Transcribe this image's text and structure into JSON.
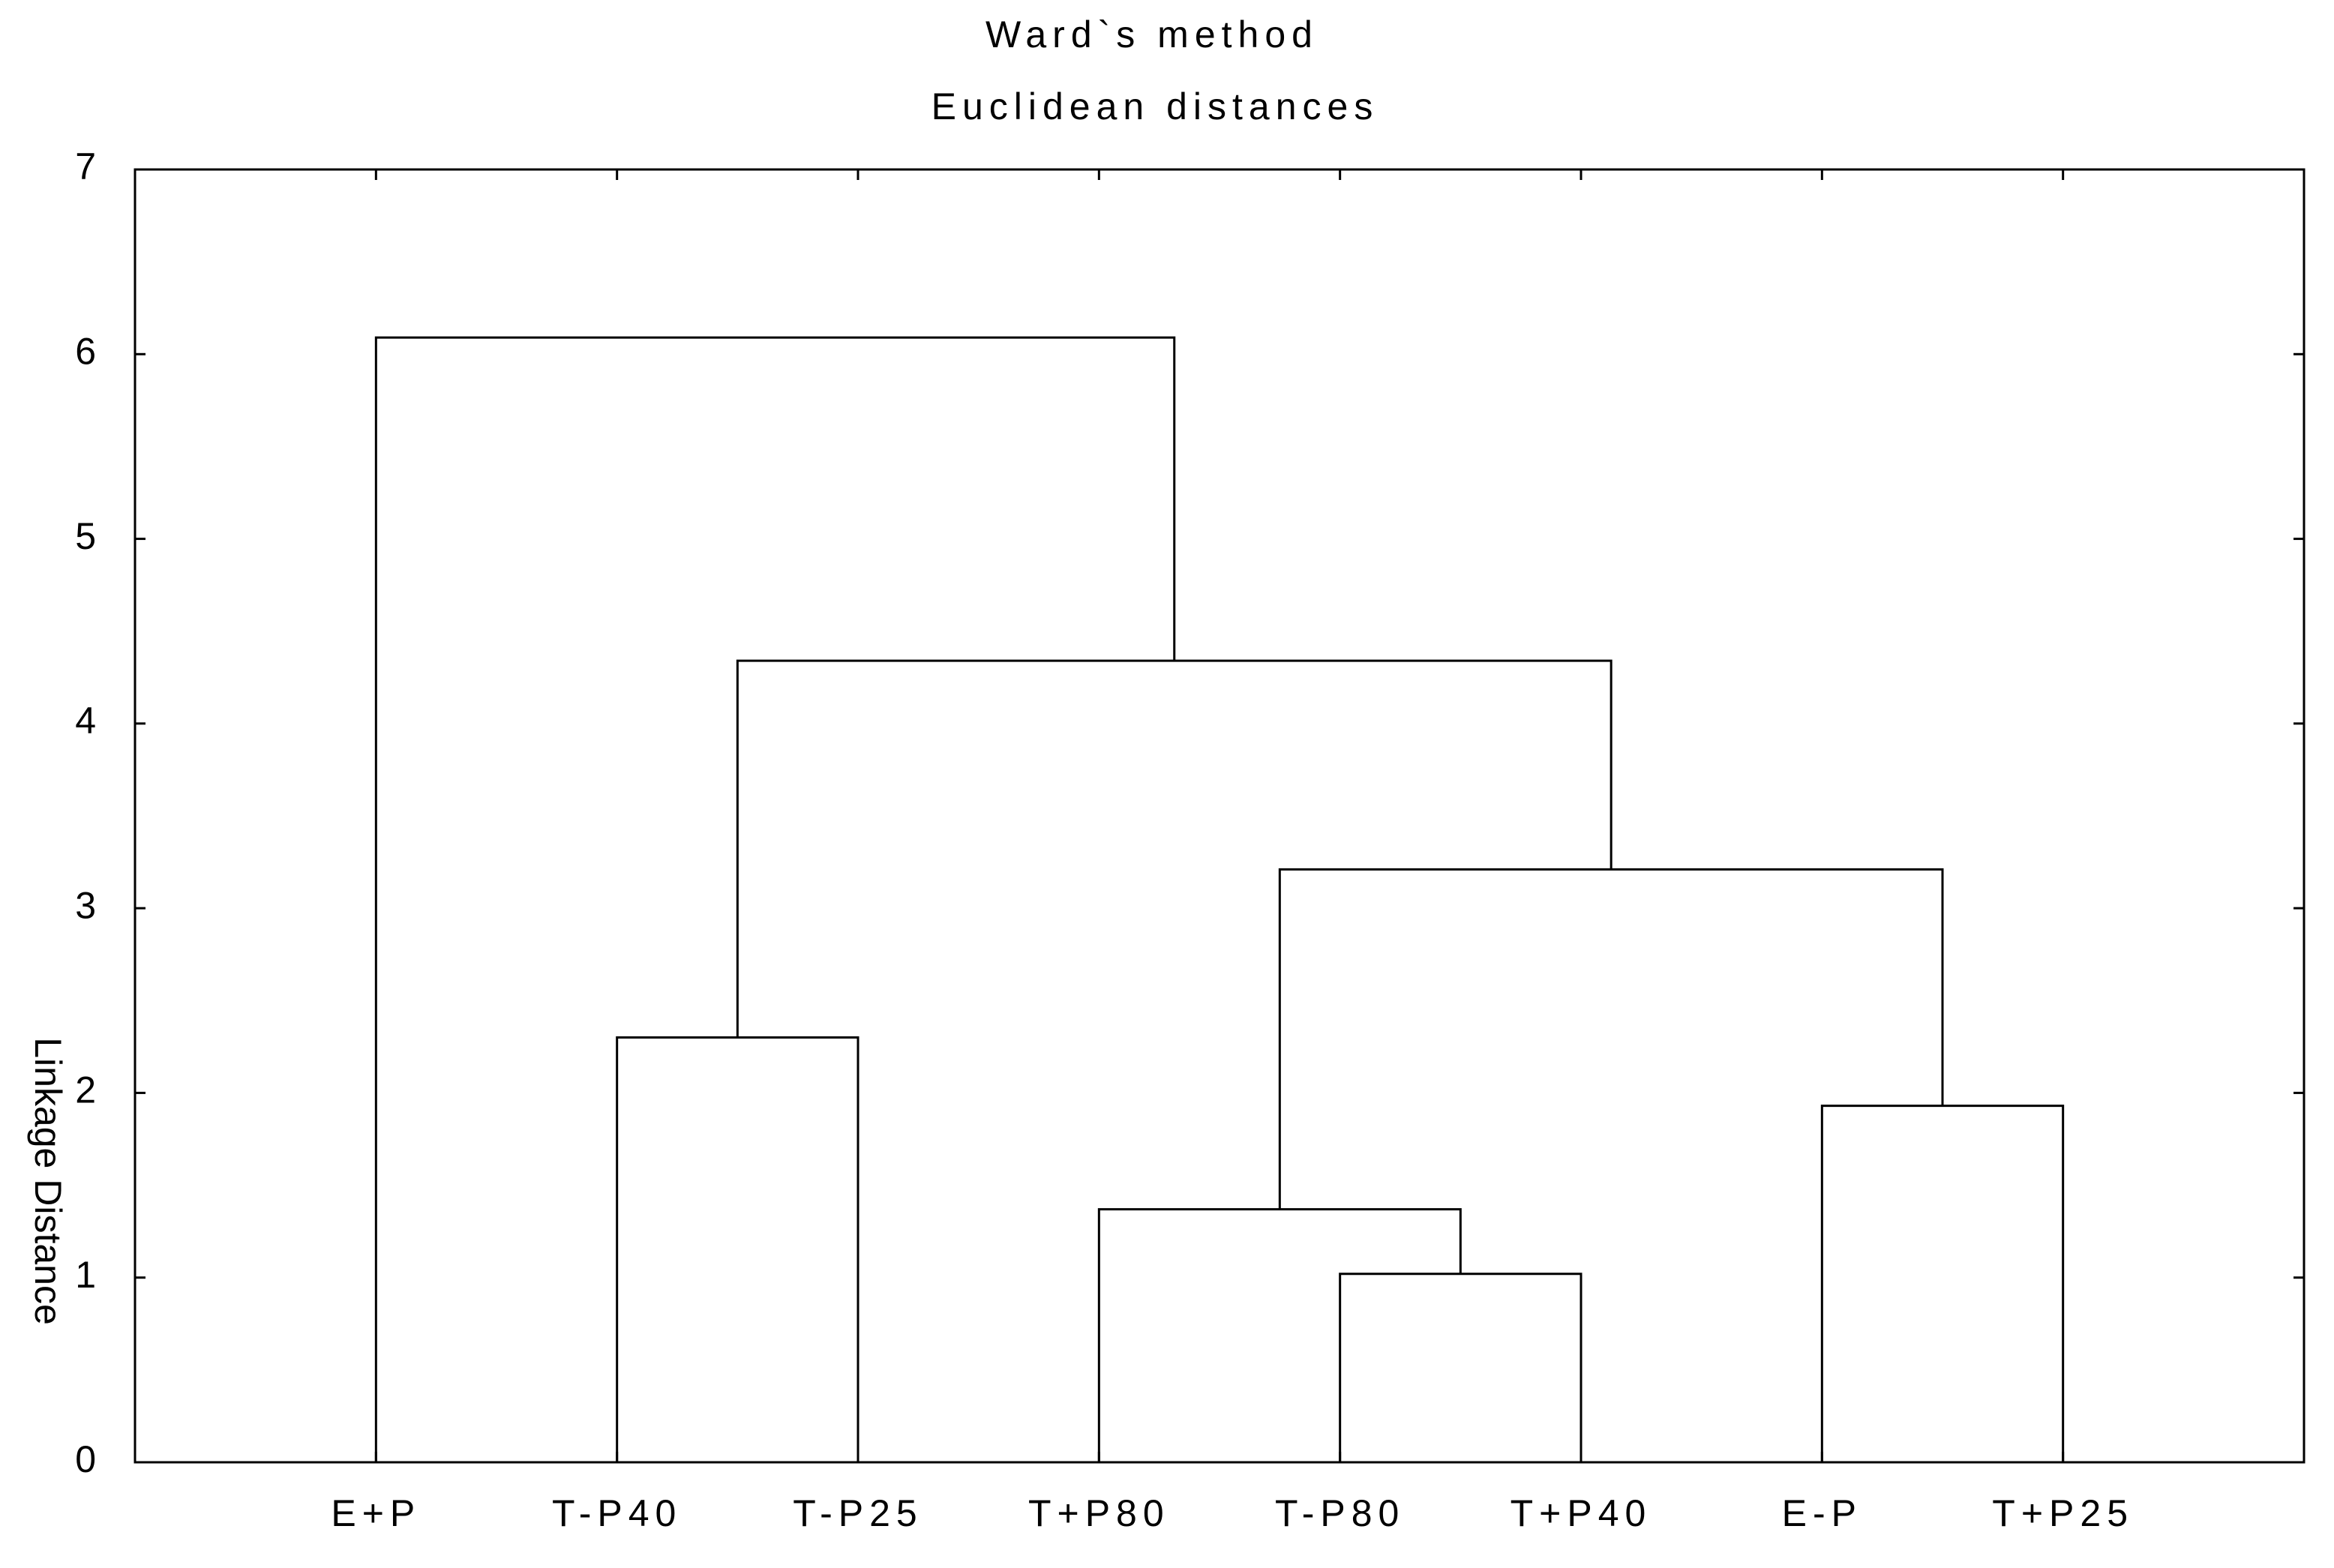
{
  "chart_data": {
    "type": "dendrogram",
    "title": "Ward`s method",
    "subtitle": "Euclidean distances",
    "y_label": "Linkage Distance",
    "leaves": [
      "E+P",
      "T-P40",
      "T-P25",
      "T+P80",
      "T-P80",
      "T+P40",
      "E-P",
      "T+P25"
    ],
    "merges": [
      {
        "children": [
          4,
          5
        ],
        "height": 1.02
      },
      {
        "children": [
          3,
          8
        ],
        "height": 1.37
      },
      {
        "children": [
          6,
          7
        ],
        "height": 1.93
      },
      {
        "children": [
          9,
          10
        ],
        "height": 3.21
      },
      {
        "children": [
          1,
          2
        ],
        "height": 2.3
      },
      {
        "children": [
          12,
          11
        ],
        "height": 4.34
      },
      {
        "children": [
          0,
          13
        ],
        "height": 6.09
      }
    ],
    "color": "#000000",
    "ylim": [
      0,
      7
    ],
    "yticks": [
      0,
      1,
      2,
      3,
      4,
      5,
      6,
      7
    ]
  }
}
